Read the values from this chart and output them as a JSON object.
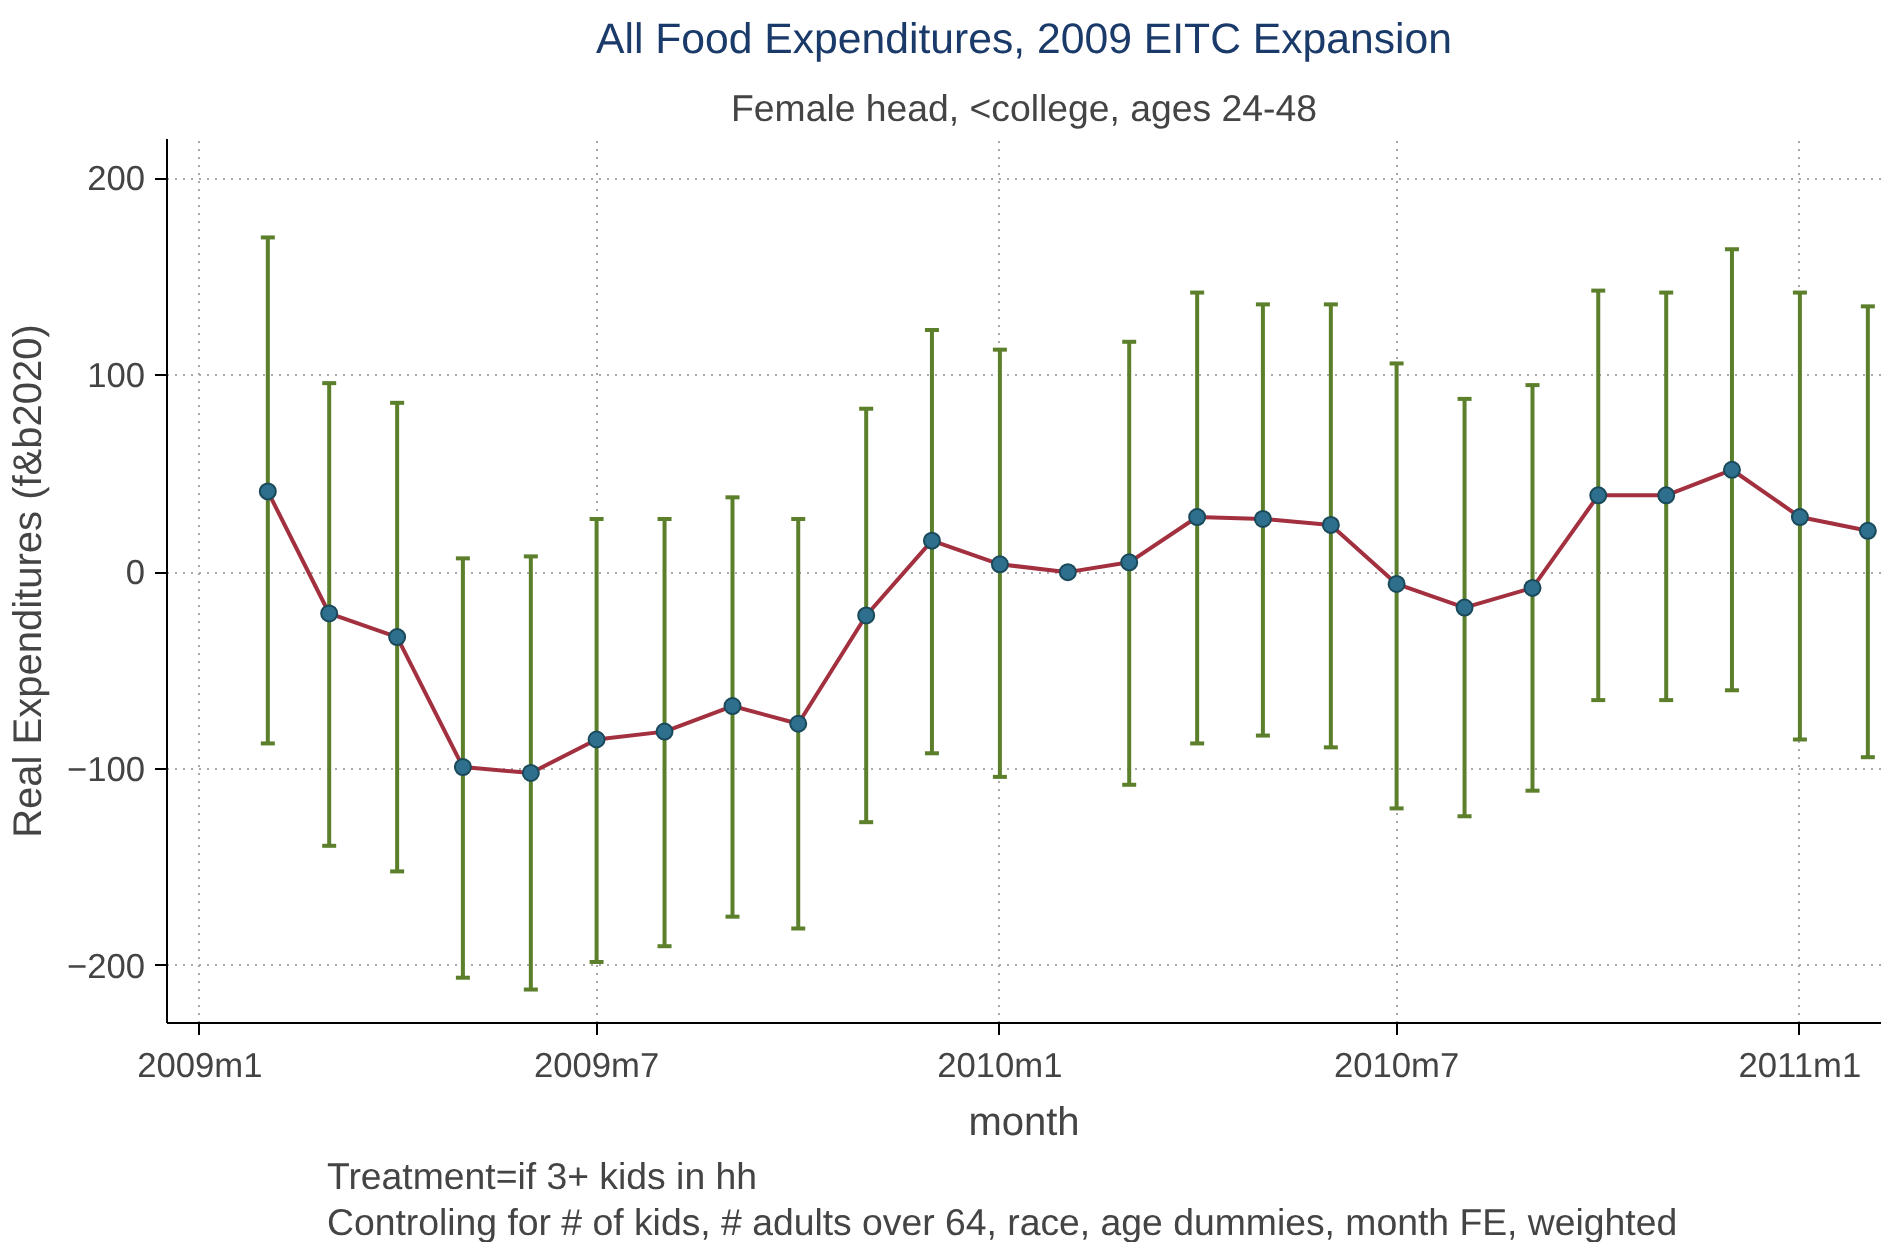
{
  "chart_data": {
    "type": "line",
    "title": "All Food Expenditures, 2009 EITC Expansion",
    "subtitle": "Female head, <college, ages 24-48",
    "xlabel": "month",
    "ylabel": "Real Expenditures (f&b2020)",
    "x": [
      "2009-02",
      "2009-03",
      "2009-04",
      "2009-05",
      "2009-06",
      "2009-07",
      "2009-08",
      "2009-09",
      "2009-10",
      "2009-11",
      "2009-12",
      "2010-01",
      "2010-02",
      "2010-03",
      "2010-04",
      "2010-05",
      "2010-06",
      "2010-07",
      "2010-08",
      "2010-09",
      "2010-10",
      "2010-11",
      "2010-12",
      "2011-01",
      "2011-02"
    ],
    "series": [
      {
        "color": "#a3303f",
        "values": [
          41,
          -21,
          -33,
          -99,
          -102,
          -85,
          -81,
          -68,
          -77,
          -22,
          16,
          4,
          0,
          5,
          28,
          27,
          24,
          -6,
          -18,
          -8,
          39,
          39,
          52,
          28,
          21
        ],
        "errors": [
          [
            -87,
            170
          ],
          [
            -139,
            96
          ],
          [
            -152,
            86
          ],
          [
            -206,
            7
          ],
          [
            -212,
            8
          ],
          [
            -198,
            27
          ],
          [
            -190,
            27
          ],
          [
            -175,
            38
          ],
          [
            -181,
            27
          ],
          [
            -127,
            83
          ],
          [
            -92,
            123
          ],
          [
            -104,
            113
          ],
          null,
          [
            -108,
            117
          ],
          [
            -87,
            142
          ],
          [
            -83,
            136
          ],
          [
            -89,
            136
          ],
          [
            -120,
            106
          ],
          [
            -124,
            88
          ],
          [
            -111,
            95
          ],
          [
            -65,
            143
          ],
          [
            -65,
            142
          ],
          [
            -60,
            164
          ],
          [
            -85,
            142
          ],
          [
            -94,
            135
          ]
        ]
      }
    ],
    "xlim": [
      "2008-12-17",
      "2011-02-07"
    ],
    "ylim": [
      -229,
      220
    ],
    "xticks": [
      {
        "value": "2009-01",
        "label": "2009m1"
      },
      {
        "value": "2009-07",
        "label": "2009m7"
      },
      {
        "value": "2010-01",
        "label": "2010m1"
      },
      {
        "value": "2010-07",
        "label": "2010m7"
      },
      {
        "value": "2011-01",
        "label": "2011m1"
      }
    ],
    "yticks": [
      -200,
      -100,
      0,
      100,
      200
    ],
    "grid": true,
    "marker": "circle",
    "line_style": "solid",
    "annotations": [
      "Treatment=if 3+ kids in hh",
      "Controling for # of kids, # adults over 64, race, age dummies, month FE, weighted"
    ]
  }
}
